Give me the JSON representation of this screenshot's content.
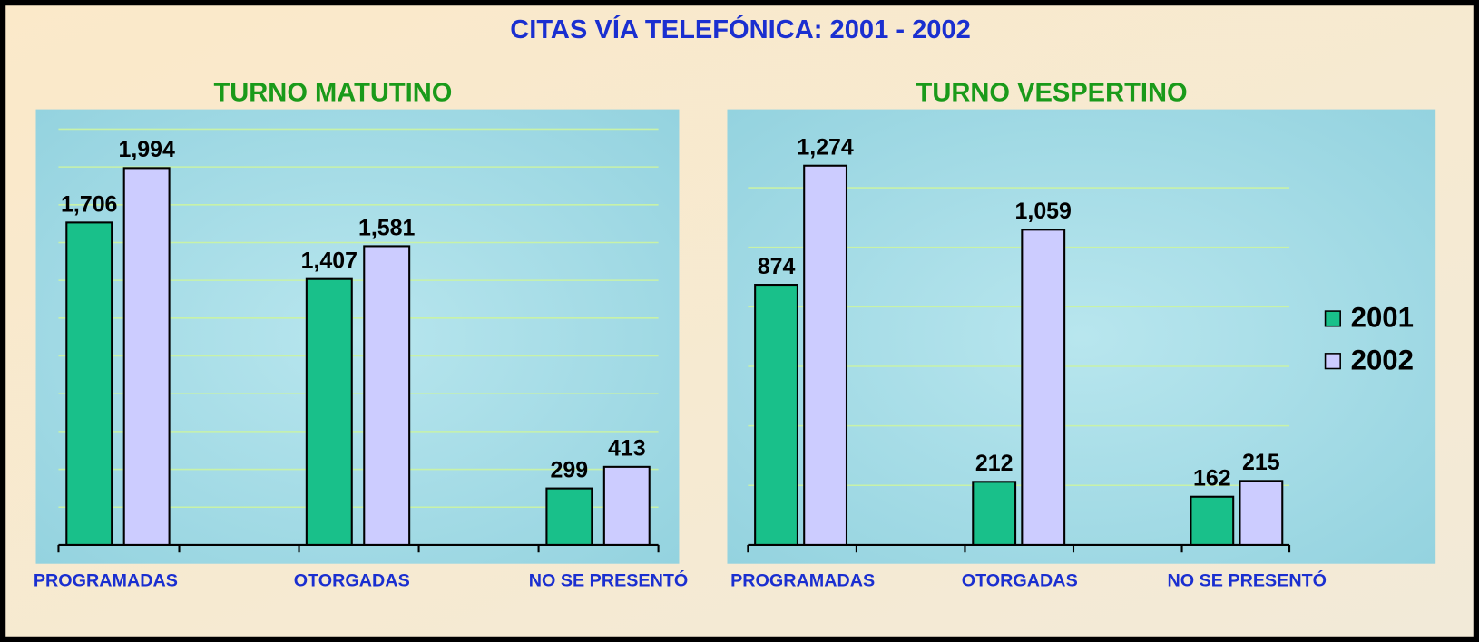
{
  "title": "CITAS VÍA TELEFÓNICA: 2001 - 2002",
  "chart_data": [
    {
      "type": "bar",
      "title": "TURNO MATUTINO",
      "categories": [
        "PROGRAMADAS",
        "OTORGADAS",
        "NO SE PRESENTÓ"
      ],
      "series": [
        {
          "color": "#19c08a",
          "values": [
            1706,
            1407,
            299
          ],
          "value_labels": [
            "1,706",
            "1,407",
            "299"
          ]
        },
        {
          "color": "#ccccff",
          "values": [
            1994,
            1581,
            413
          ],
          "value_labels": [
            "1,994",
            "1,581",
            "413"
          ]
        }
      ],
      "ylim": [
        0,
        2200
      ],
      "yticks": [
        0,
        200,
        400,
        600,
        800,
        1000,
        1200,
        1400,
        1600,
        1800,
        2000,
        2200
      ],
      "grid": true
    },
    {
      "type": "bar",
      "title": "TURNO  VESPERTINO",
      "categories": [
        "PROGRAMADAS",
        "OTORGADAS",
        "NO SE PRESENTÓ"
      ],
      "series": [
        {
          "name": "2001",
          "color": "#19c08a",
          "values": [
            874,
            212,
            162
          ],
          "value_labels": [
            "874",
            "212",
            "162"
          ]
        },
        {
          "name": "2002",
          "color": "#ccccff",
          "values": [
            1274,
            1059,
            215
          ],
          "value_labels": [
            "1,274",
            "1,059",
            "215"
          ]
        }
      ],
      "ylim": [
        0,
        1400
      ],
      "yticks": [
        0,
        200,
        400,
        600,
        800,
        1000,
        1200
      ],
      "grid": true,
      "legend": "right"
    }
  ]
}
